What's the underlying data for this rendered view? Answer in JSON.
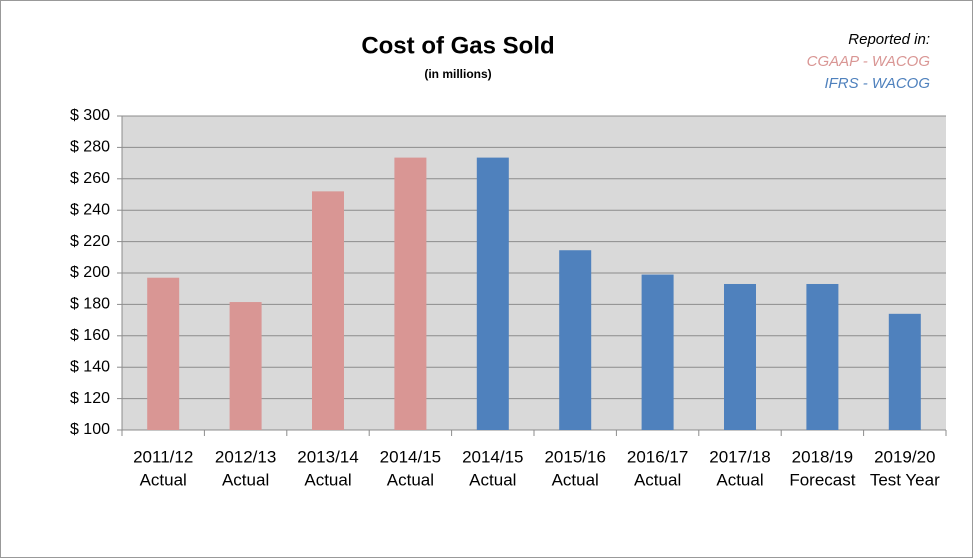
{
  "chart_data": {
    "type": "bar",
    "title": "Cost of Gas Sold",
    "subtitle": "(in millions)",
    "legend_title": "Reported in:",
    "legend_position": "top-right",
    "categories": [
      [
        "2011/12",
        "Actual"
      ],
      [
        "2012/13",
        "Actual"
      ],
      [
        "2013/14",
        "Actual"
      ],
      [
        "2014/15",
        "Actual"
      ],
      [
        "2014/15",
        "Actual"
      ],
      [
        "2015/16",
        "Actual"
      ],
      [
        "2016/17",
        "Actual"
      ],
      [
        "2017/18",
        "Actual"
      ],
      [
        "2018/19",
        "Forecast"
      ],
      [
        "2019/20",
        "Test Year"
      ]
    ],
    "series": [
      {
        "name": "CGAAP - WACOG",
        "color": "#d99694",
        "values": [
          197,
          181.5,
          252,
          273.5,
          null,
          null,
          null,
          null,
          null,
          null
        ]
      },
      {
        "name": "IFRS - WACOG",
        "color": "#4f81bd",
        "values": [
          null,
          null,
          null,
          null,
          273.5,
          214.5,
          199,
          193,
          193,
          174
        ]
      }
    ],
    "ylim": [
      100,
      300
    ],
    "yticks": [
      {
        "value": 100,
        "label": "$ 100"
      },
      {
        "value": 120,
        "label": "$ 120"
      },
      {
        "value": 140,
        "label": "$ 140"
      },
      {
        "value": 160,
        "label": "$ 160"
      },
      {
        "value": 180,
        "label": "$ 180"
      },
      {
        "value": 200,
        "label": "$ 200"
      },
      {
        "value": 220,
        "label": "$ 220"
      },
      {
        "value": 240,
        "label": "$ 240"
      },
      {
        "value": 260,
        "label": "$ 260"
      },
      {
        "value": 280,
        "label": "$ 280"
      },
      {
        "value": 300,
        "label": "$ 300"
      }
    ],
    "grid": true,
    "plot_background": "#d9d9d9"
  }
}
